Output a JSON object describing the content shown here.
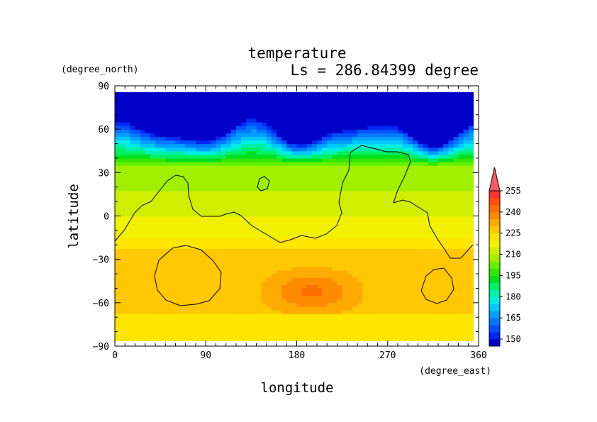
{
  "chart_data": {
    "type": "heatmap",
    "title": "temperature",
    "subtitle": "Ls = 286.84399 degree",
    "xlabel": "longitude",
    "ylabel": "latitude",
    "x_units": "(degree_east)",
    "y_units": "(degree_north)",
    "xlim": [
      0,
      360
    ],
    "ylim": [
      -90,
      90
    ],
    "x_ticks": [
      "0",
      "90",
      "180",
      "270",
      "360"
    ],
    "y_ticks": [
      "90",
      "60",
      "30",
      "0",
      "−30",
      "−60",
      "−90"
    ],
    "grid": false,
    "legend_position": "right",
    "colorbar": {
      "tick_labels": [
        "150",
        "165",
        "180",
        "195",
        "210",
        "225",
        "240",
        "255"
      ],
      "levels": [
        145,
        150,
        155,
        160,
        165,
        170,
        175,
        180,
        185,
        190,
        195,
        200,
        205,
        210,
        215,
        220,
        225,
        230,
        235,
        240,
        245,
        250,
        255,
        260
      ],
      "colors": [
        "#0000c8",
        "#0028f0",
        "#0050ff",
        "#0078ff",
        "#00a0ff",
        "#00c8ff",
        "#00eee6",
        "#00f0a8",
        "#00f064",
        "#00e01e",
        "#32e600",
        "#64f000",
        "#a0f000",
        "#cef000",
        "#f0f000",
        "#ffe600",
        "#ffc800",
        "#ffaa00",
        "#ff8c00",
        "#ff6e00",
        "#ff5000",
        "#ff3232",
        "#ff5a64"
      ],
      "extend_max": true
    }
  }
}
